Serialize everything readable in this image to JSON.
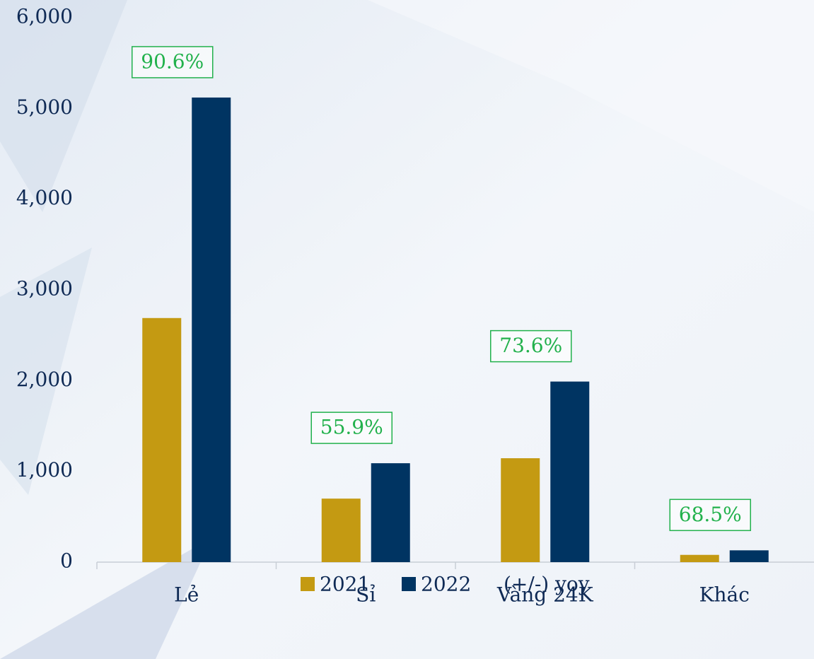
{
  "chart_data": {
    "type": "bar",
    "categories": [
      "Lẻ",
      "Sỉ",
      "Vàng 24K",
      "Khác"
    ],
    "series": [
      {
        "name": "2021",
        "color": "#c49a12",
        "values": [
          2690,
          700,
          1145,
          80
        ]
      },
      {
        "name": "2022",
        "color": "#003462",
        "values": [
          5120,
          1090,
          1990,
          130
        ]
      },
      {
        "name": "(+/-) yoy",
        "color": "#22b14c",
        "values": [
          90.6,
          55.9,
          73.6,
          68.5
        ],
        "value_labels": [
          "90.6%",
          "55.9%",
          "73.6%",
          "68.5%"
        ]
      }
    ],
    "ylim": [
      0,
      6000
    ],
    "yticks": [
      0,
      {
        "value": 1000,
        "label": "1,000"
      },
      {
        "value": 2000,
        "label": "2,000"
      },
      {
        "value": 3000,
        "label": "3,000"
      },
      {
        "value": 4000,
        "label": "4,000"
      },
      {
        "value": 5000,
        "label": "5,000"
      },
      {
        "value": 6000,
        "label": "6,000"
      }
    ],
    "legend": "bottom"
  }
}
